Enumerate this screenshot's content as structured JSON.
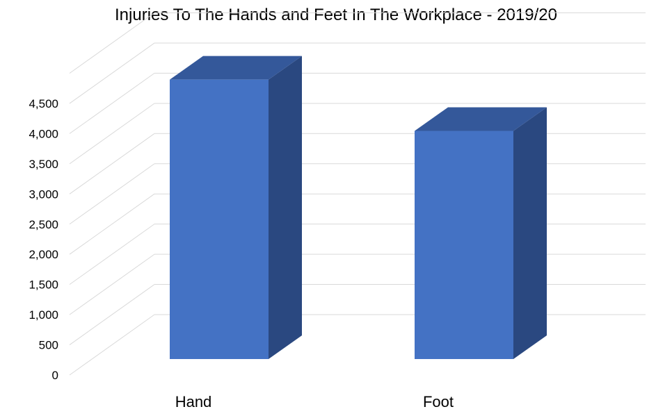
{
  "chart_data": {
    "type": "bar",
    "title": "Injuries To The Hands and Feet In The Workplace - 2019/20",
    "categories": [
      "Hand",
      "Foot"
    ],
    "values": [
      4630,
      3780
    ],
    "ylim": [
      0,
      5000
    ],
    "yticks": [
      0,
      500,
      1000,
      1500,
      2000,
      2500,
      3000,
      3500,
      4000,
      4500
    ],
    "ytick_labels": [
      "0",
      "500",
      "1,000",
      "1,500",
      "2,000",
      "2,500",
      "3,000",
      "3,500",
      "4,000",
      "4,500"
    ],
    "grid": true,
    "style": "3d-column",
    "colors": {
      "front": "#4472C4",
      "top": "#34589A",
      "side": "#2A4880",
      "grid": "#D9D9D9"
    }
  }
}
